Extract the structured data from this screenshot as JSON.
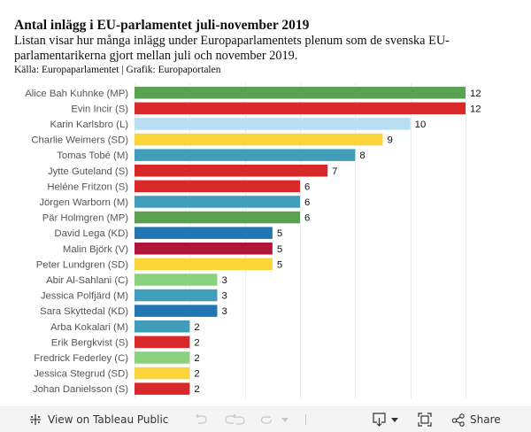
{
  "header": {
    "title": "Antal inlägg i EU-parlamentet juli-november 2019",
    "subtitle": "Listan visar hur många inlägg under Europaparlamentets plenum som de svenska EU-parlamentarikerna gjort mellan juli och november 2019.",
    "source": "Källa: Europaparlamentet | Grafik: Europaportalen"
  },
  "party_colors": {
    "MP": "#5ba152",
    "S": "#d92829",
    "L": "#b9def0",
    "SD": "#fbd43a",
    "M": "#419ebb",
    "KD": "#1f76b3",
    "V": "#b01539",
    "C": "#8ad17e"
  },
  "chart_data": {
    "type": "bar",
    "orientation": "horizontal",
    "title": "Antal inlägg i EU-parlamentet juli-november 2019",
    "xlabel": "",
    "ylabel": "",
    "xlim": [
      0,
      12
    ],
    "grid": true,
    "grid_step": 2,
    "legend": "none",
    "categories": [
      "Alice Bah Kuhnke (MP)",
      "Evin Incir (S)",
      "Karin Karlsbro (L)",
      "Charlie Weimers (SD)",
      "Tomas Tobé (M)",
      "Jytte Guteland (S)",
      "Heléne Fritzon (S)",
      "Jörgen Warborn (M)",
      "Pär Holmgren (MP)",
      "David Lega (KD)",
      "Malin Björk (V)",
      "Peter Lundgren (SD)",
      "Abir Al-Sahlani (C)",
      "Jessica Polfjärd (M)",
      "Sara Skyttedal (KD)",
      "Arba Kokalari (M)",
      "Erik Bergkvist (S)",
      "Fredrick Federley (C)",
      "Jessica Stegrud (SD)",
      "Johan Danielsson (S)"
    ],
    "parties": [
      "MP",
      "S",
      "L",
      "SD",
      "M",
      "S",
      "S",
      "M",
      "MP",
      "KD",
      "V",
      "SD",
      "C",
      "M",
      "KD",
      "M",
      "S",
      "C",
      "SD",
      "S"
    ],
    "values": [
      12,
      12,
      10,
      9,
      8,
      7,
      6,
      6,
      6,
      5,
      5,
      5,
      3,
      3,
      3,
      2,
      2,
      2,
      2,
      2
    ]
  },
  "footer": {
    "view_label": "View on Tableau Public",
    "share_label": "Share"
  }
}
